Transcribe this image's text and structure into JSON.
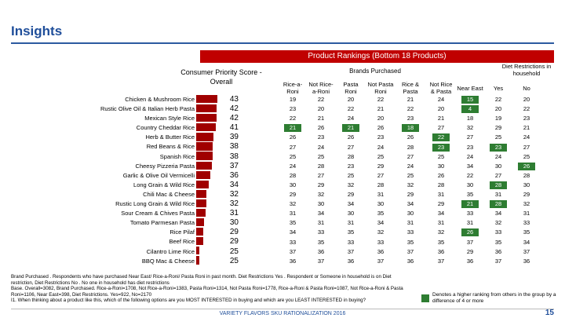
{
  "header": {
    "title": "Insights"
  },
  "banner": "Product Rankings (Bottom 18 Products)",
  "consumer_priority_heading": "Consumer Priority Score - Overall",
  "brands_heading": "Brands Purchased",
  "diet_heading": "Diet Restrictions in household",
  "columns": [
    "Rice-a-Roni",
    "Not Rice-a-Roni",
    "Pasta Roni",
    "Not Pasta Roni",
    "Rice & Pasta",
    "Not Rice & Pasta",
    "Near East",
    "Yes",
    "No"
  ],
  "rows": [
    {
      "label": "Chicken & Mushroom Rice",
      "score": "43",
      "values": [
        "19",
        "22",
        "20",
        "22",
        "21",
        "24",
        "15",
        "22",
        "20"
      ]
    },
    {
      "label": "Rustic Olive Oil & Italian Herb Pasta",
      "score": "42",
      "values": [
        "23",
        "20",
        "22",
        "21",
        "22",
        "20",
        "4",
        "20",
        "22"
      ]
    },
    {
      "label": "Mexican Style Rice",
      "score": "42",
      "values": [
        "22",
        "21",
        "24",
        "20",
        "23",
        "21",
        "18",
        "19",
        "23"
      ]
    },
    {
      "label": "Country Cheddar Rice",
      "score": "41",
      "values": [
        "21",
        "26",
        "21",
        "26",
        "18",
        "27",
        "32",
        "29",
        "21"
      ]
    },
    {
      "label": "Herb & Butter Rice",
      "score": "39",
      "values": [
        "26",
        "23",
        "26",
        "23",
        "26",
        "22",
        "27",
        "25",
        "24"
      ]
    },
    {
      "label": "Red Beans & Rice",
      "score": "38",
      "values": [
        "27",
        "24",
        "27",
        "24",
        "28",
        "23",
        "23",
        "23",
        "27"
      ]
    },
    {
      "label": "Spanish Rice",
      "score": "38",
      "values": [
        "25",
        "25",
        "28",
        "25",
        "27",
        "25",
        "24",
        "24",
        "25"
      ]
    },
    {
      "label": "Cheesy Pizzeria Pasta",
      "score": "37",
      "values": [
        "24",
        "28",
        "23",
        "29",
        "24",
        "30",
        "34",
        "30",
        "26"
      ]
    },
    {
      "label": "Garlic & Olive Oil Vermicelli",
      "score": "36",
      "values": [
        "28",
        "27",
        "25",
        "27",
        "25",
        "26",
        "22",
        "27",
        "28"
      ]
    },
    {
      "label": "Long Grain & Wild Rice",
      "score": "34",
      "values": [
        "30",
        "29",
        "32",
        "28",
        "32",
        "28",
        "30",
        "28",
        "30"
      ]
    },
    {
      "label": "Chili Mac & Cheese",
      "score": "32",
      "values": [
        "29",
        "32",
        "29",
        "31",
        "29",
        "31",
        "35",
        "31",
        "29"
      ]
    },
    {
      "label": "Rustic Long Grain & Wild Rice",
      "score": "32",
      "values": [
        "32",
        "30",
        "34",
        "30",
        "34",
        "29",
        "21",
        "28",
        "32"
      ]
    },
    {
      "label": "Sour Cream & Chives Pasta",
      "score": "31",
      "values": [
        "31",
        "34",
        "30",
        "35",
        "30",
        "34",
        "33",
        "34",
        "31"
      ]
    },
    {
      "label": "Tomato Parmesan Pasta",
      "score": "30",
      "values": [
        "35",
        "31",
        "31",
        "34",
        "31",
        "31",
        "31",
        "32",
        "33"
      ]
    },
    {
      "label": "Rice Pilaf",
      "score": "29",
      "values": [
        "34",
        "33",
        "35",
        "32",
        "33",
        "32",
        "26",
        "33",
        "35"
      ]
    },
    {
      "label": "Beef Rice",
      "score": "29",
      "values": [
        "33",
        "35",
        "33",
        "33",
        "35",
        "35",
        "37",
        "35",
        "34"
      ]
    },
    {
      "label": "Cilantro Lime Rice",
      "score": "25",
      "values": [
        "37",
        "36",
        "37",
        "36",
        "37",
        "36",
        "29",
        "36",
        "37"
      ]
    },
    {
      "label": "BBQ Mac & Cheese",
      "score": "25",
      "values": [
        "36",
        "37",
        "36",
        "37",
        "36",
        "37",
        "36",
        "37",
        "36"
      ]
    }
  ],
  "highlights": [
    [
      0,
      6
    ],
    [
      1,
      6
    ],
    [
      3,
      0
    ],
    [
      3,
      2
    ],
    [
      3,
      4
    ],
    [
      4,
      5
    ],
    [
      5,
      5
    ],
    [
      5,
      7
    ],
    [
      7,
      8
    ],
    [
      9,
      7
    ],
    [
      11,
      6
    ],
    [
      11,
      7
    ],
    [
      14,
      6
    ]
  ],
  "colors": {
    "bar": "#a00000",
    "highlight": "#2e7d32",
    "banner": "#c00000",
    "title": "#1f4e9a"
  },
  "notes": [
    "Brand Purchased . Respondents who have purchased Near East/ Rice-a-Roni/ Pasta Roni in past month. Diet Restrictions Yes . Respondent or Someone in household is on Diet restriction, Diet Restrictions No . No one in household has diet restrictions",
    "Base. Overall=3082, Brand Purchased. Rice-a-Roni=1708, Not Rice-a-Roni=1383, Pasta Roni=1314, Not Pasta Roni=1778, Rice-a-Roni & Pasta Roni=1087, Not Rice-a-Roni & Pasta Roni=1106, Near East=398, Diet Restrictions. Yes=922, No=2170",
    "I1. When thinking about a product like this, which of the following options are you MOST INTERESTED in buying and which are you LEAST INTERESTED in buying?"
  ],
  "legend": "Denotes a higher ranking from others in the group by a difference of 4 or more",
  "footer": "VARIETY FLAVORS SKU RATIONALIZATION 2016",
  "page_number": "15"
}
